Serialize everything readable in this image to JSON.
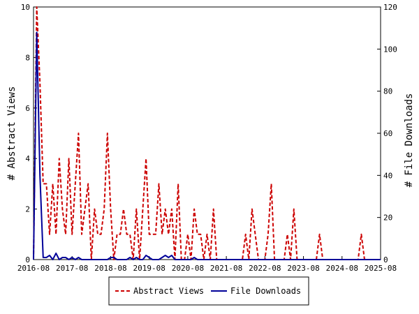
{
  "chart_data": {
    "type": "line",
    "ylabel_left": "# Abstract Views",
    "ylabel_right": "# File Downloads",
    "xlim": [
      "2016-08",
      "2025-08"
    ],
    "ylim_left": [
      0,
      10
    ],
    "ylim_right": [
      0,
      120
    ],
    "x_ticks": [
      "2016-08",
      "2017-08",
      "2018-08",
      "2019-08",
      "2020-08",
      "2021-08",
      "2022-08",
      "2023-08",
      "2024-08",
      "2025-08"
    ],
    "y_ticks_left": [
      "0",
      "2",
      "4",
      "6",
      "8",
      "10"
    ],
    "y_ticks_right": [
      "0",
      "20",
      "40",
      "60",
      "80",
      "100",
      "120"
    ],
    "legend_position": "bottom-center",
    "grid": false,
    "series": [
      {
        "name": "Abstract Views",
        "axis": "left",
        "color": "#cc0000",
        "style": "dashed",
        "points": [
          [
            "2016-08",
            0
          ],
          [
            "2016-09",
            10
          ],
          [
            "2016-10",
            7
          ],
          [
            "2016-11",
            3
          ],
          [
            "2016-12",
            3
          ],
          [
            "2017-01",
            1
          ],
          [
            "2017-02",
            3
          ],
          [
            "2017-03",
            1
          ],
          [
            "2017-04",
            4
          ],
          [
            "2017-05",
            2
          ],
          [
            "2017-06",
            1
          ],
          [
            "2017-07",
            4
          ],
          [
            "2017-08",
            1
          ],
          [
            "2017-09",
            3
          ],
          [
            "2017-10",
            5
          ],
          [
            "2017-11",
            1
          ],
          [
            "2017-12",
            2
          ],
          [
            "2018-01",
            3
          ],
          [
            "2018-02",
            0
          ],
          [
            "2018-03",
            2
          ],
          [
            "2018-04",
            1
          ],
          [
            "2018-05",
            1
          ],
          [
            "2018-06",
            2
          ],
          [
            "2018-07",
            5
          ],
          [
            "2018-08",
            2
          ],
          [
            "2018-09",
            0
          ],
          [
            "2018-10",
            1
          ],
          [
            "2018-11",
            1
          ],
          [
            "2018-12",
            2
          ],
          [
            "2019-01",
            1
          ],
          [
            "2019-02",
            1
          ],
          [
            "2019-03",
            0
          ],
          [
            "2019-04",
            2
          ],
          [
            "2019-05",
            0
          ],
          [
            "2019-06",
            2
          ],
          [
            "2019-07",
            4
          ],
          [
            "2019-08",
            1
          ],
          [
            "2019-09",
            1
          ],
          [
            "2019-10",
            1
          ],
          [
            "2019-11",
            3
          ],
          [
            "2019-12",
            1
          ],
          [
            "2020-01",
            2
          ],
          [
            "2020-02",
            1
          ],
          [
            "2020-03",
            2
          ],
          [
            "2020-04",
            0
          ],
          [
            "2020-05",
            3
          ],
          [
            "2020-06",
            0
          ],
          [
            "2020-07",
            0
          ],
          [
            "2020-08",
            1
          ],
          [
            "2020-09",
            0
          ],
          [
            "2020-10",
            2
          ],
          [
            "2020-11",
            1
          ],
          [
            "2020-12",
            1
          ],
          [
            "2021-01",
            0
          ],
          [
            "2021-02",
            1
          ],
          [
            "2021-03",
            0
          ],
          [
            "2021-04",
            2
          ],
          [
            "2021-05",
            0
          ],
          [
            "2021-06",
            0
          ],
          [
            "2021-07",
            0
          ],
          [
            "2021-08",
            0
          ],
          [
            "2021-09",
            0
          ],
          [
            "2021-10",
            0
          ],
          [
            "2021-11",
            0
          ],
          [
            "2021-12",
            0
          ],
          [
            "2022-01",
            0
          ],
          [
            "2022-02",
            1
          ],
          [
            "2022-03",
            0
          ],
          [
            "2022-04",
            2
          ],
          [
            "2022-05",
            1
          ],
          [
            "2022-06",
            0
          ],
          [
            "2022-07",
            0
          ],
          [
            "2022-08",
            0
          ],
          [
            "2022-09",
            1
          ],
          [
            "2022-10",
            3
          ],
          [
            "2022-11",
            0
          ],
          [
            "2022-12",
            0
          ],
          [
            "2023-01",
            0
          ],
          [
            "2023-02",
            0
          ],
          [
            "2023-03",
            1
          ],
          [
            "2023-04",
            0
          ],
          [
            "2023-05",
            2
          ],
          [
            "2023-06",
            0
          ],
          [
            "2023-07",
            0
          ],
          [
            "2023-08",
            0
          ],
          [
            "2023-09",
            0
          ],
          [
            "2023-10",
            0
          ],
          [
            "2023-11",
            0
          ],
          [
            "2023-12",
            0
          ],
          [
            "2024-01",
            1
          ],
          [
            "2024-02",
            0
          ],
          [
            "2024-03",
            0
          ],
          [
            "2024-04",
            0
          ],
          [
            "2024-05",
            0
          ],
          [
            "2024-06",
            0
          ],
          [
            "2024-07",
            0
          ],
          [
            "2024-08",
            0
          ],
          [
            "2024-09",
            0
          ],
          [
            "2024-10",
            0
          ],
          [
            "2024-11",
            0
          ],
          [
            "2024-12",
            0
          ],
          [
            "2025-01",
            0
          ],
          [
            "2025-02",
            1
          ],
          [
            "2025-03",
            0
          ],
          [
            "2025-04",
            0
          ],
          [
            "2025-05",
            0
          ],
          [
            "2025-06",
            0
          ],
          [
            "2025-07",
            0
          ],
          [
            "2025-08",
            0
          ]
        ]
      },
      {
        "name": "File Downloads",
        "axis": "right",
        "color": "#000099",
        "style": "solid",
        "points": [
          [
            "2016-08",
            0
          ],
          [
            "2016-09",
            108
          ],
          [
            "2016-10",
            40
          ],
          [
            "2016-11",
            1
          ],
          [
            "2016-12",
            1
          ],
          [
            "2017-01",
            2
          ],
          [
            "2017-02",
            0
          ],
          [
            "2017-03",
            3
          ],
          [
            "2017-04",
            0
          ],
          [
            "2017-05",
            1
          ],
          [
            "2017-06",
            1
          ],
          [
            "2017-07",
            0
          ],
          [
            "2017-08",
            1
          ],
          [
            "2017-09",
            0
          ],
          [
            "2017-10",
            1
          ],
          [
            "2017-11",
            0
          ],
          [
            "2017-12",
            0
          ],
          [
            "2018-01",
            0
          ],
          [
            "2018-02",
            0
          ],
          [
            "2018-03",
            0
          ],
          [
            "2018-04",
            0
          ],
          [
            "2018-05",
            0
          ],
          [
            "2018-06",
            0
          ],
          [
            "2018-07",
            0
          ],
          [
            "2018-08",
            1
          ],
          [
            "2018-09",
            1
          ],
          [
            "2018-10",
            0
          ],
          [
            "2018-11",
            0
          ],
          [
            "2018-12",
            0
          ],
          [
            "2019-01",
            0
          ],
          [
            "2019-02",
            1
          ],
          [
            "2019-03",
            0
          ],
          [
            "2019-04",
            1
          ],
          [
            "2019-05",
            0
          ],
          [
            "2019-06",
            0
          ],
          [
            "2019-07",
            2
          ],
          [
            "2019-08",
            1
          ],
          [
            "2019-09",
            0
          ],
          [
            "2019-10",
            0
          ],
          [
            "2019-11",
            0
          ],
          [
            "2019-12",
            1
          ],
          [
            "2020-01",
            2
          ],
          [
            "2020-02",
            1
          ],
          [
            "2020-03",
            2
          ],
          [
            "2020-04",
            0
          ],
          [
            "2020-05",
            0
          ],
          [
            "2020-06",
            0
          ],
          [
            "2020-07",
            0
          ],
          [
            "2020-08",
            0
          ],
          [
            "2020-09",
            0
          ],
          [
            "2020-10",
            1
          ],
          [
            "2020-11",
            0
          ],
          [
            "2020-12",
            0
          ],
          [
            "2021-01",
            0
          ],
          [
            "2021-02",
            0
          ],
          [
            "2021-03",
            0
          ],
          [
            "2021-04",
            0
          ],
          [
            "2021-05",
            0
          ],
          [
            "2021-06",
            0
          ],
          [
            "2021-07",
            0
          ],
          [
            "2021-08",
            0
          ],
          [
            "2021-09",
            0
          ],
          [
            "2021-10",
            0
          ],
          [
            "2021-11",
            0
          ],
          [
            "2021-12",
            0
          ],
          [
            "2022-01",
            0
          ],
          [
            "2022-02",
            0
          ],
          [
            "2022-03",
            0
          ],
          [
            "2022-04",
            0
          ],
          [
            "2022-05",
            0
          ],
          [
            "2022-06",
            0
          ],
          [
            "2022-07",
            0
          ],
          [
            "2022-08",
            0
          ],
          [
            "2022-09",
            0
          ],
          [
            "2022-10",
            0
          ],
          [
            "2022-11",
            0
          ],
          [
            "2022-12",
            0
          ],
          [
            "2023-01",
            0
          ],
          [
            "2023-02",
            0
          ],
          [
            "2023-03",
            0
          ],
          [
            "2023-04",
            0
          ],
          [
            "2023-05",
            0
          ],
          [
            "2023-06",
            0
          ],
          [
            "2023-07",
            0
          ],
          [
            "2023-08",
            0
          ],
          [
            "2023-09",
            0
          ],
          [
            "2023-10",
            0
          ],
          [
            "2023-11",
            0
          ],
          [
            "2023-12",
            0
          ],
          [
            "2024-01",
            0
          ],
          [
            "2024-02",
            0
          ],
          [
            "2024-03",
            0
          ],
          [
            "2024-04",
            0
          ],
          [
            "2024-05",
            0
          ],
          [
            "2024-06",
            0
          ],
          [
            "2024-07",
            0
          ],
          [
            "2024-08",
            0
          ],
          [
            "2024-09",
            0
          ],
          [
            "2024-10",
            0
          ],
          [
            "2024-11",
            0
          ],
          [
            "2024-12",
            0
          ],
          [
            "2025-01",
            0
          ],
          [
            "2025-02",
            0
          ],
          [
            "2025-03",
            0
          ],
          [
            "2025-04",
            0
          ],
          [
            "2025-05",
            0
          ],
          [
            "2025-06",
            0
          ],
          [
            "2025-07",
            0
          ],
          [
            "2025-08",
            0
          ]
        ]
      }
    ]
  }
}
